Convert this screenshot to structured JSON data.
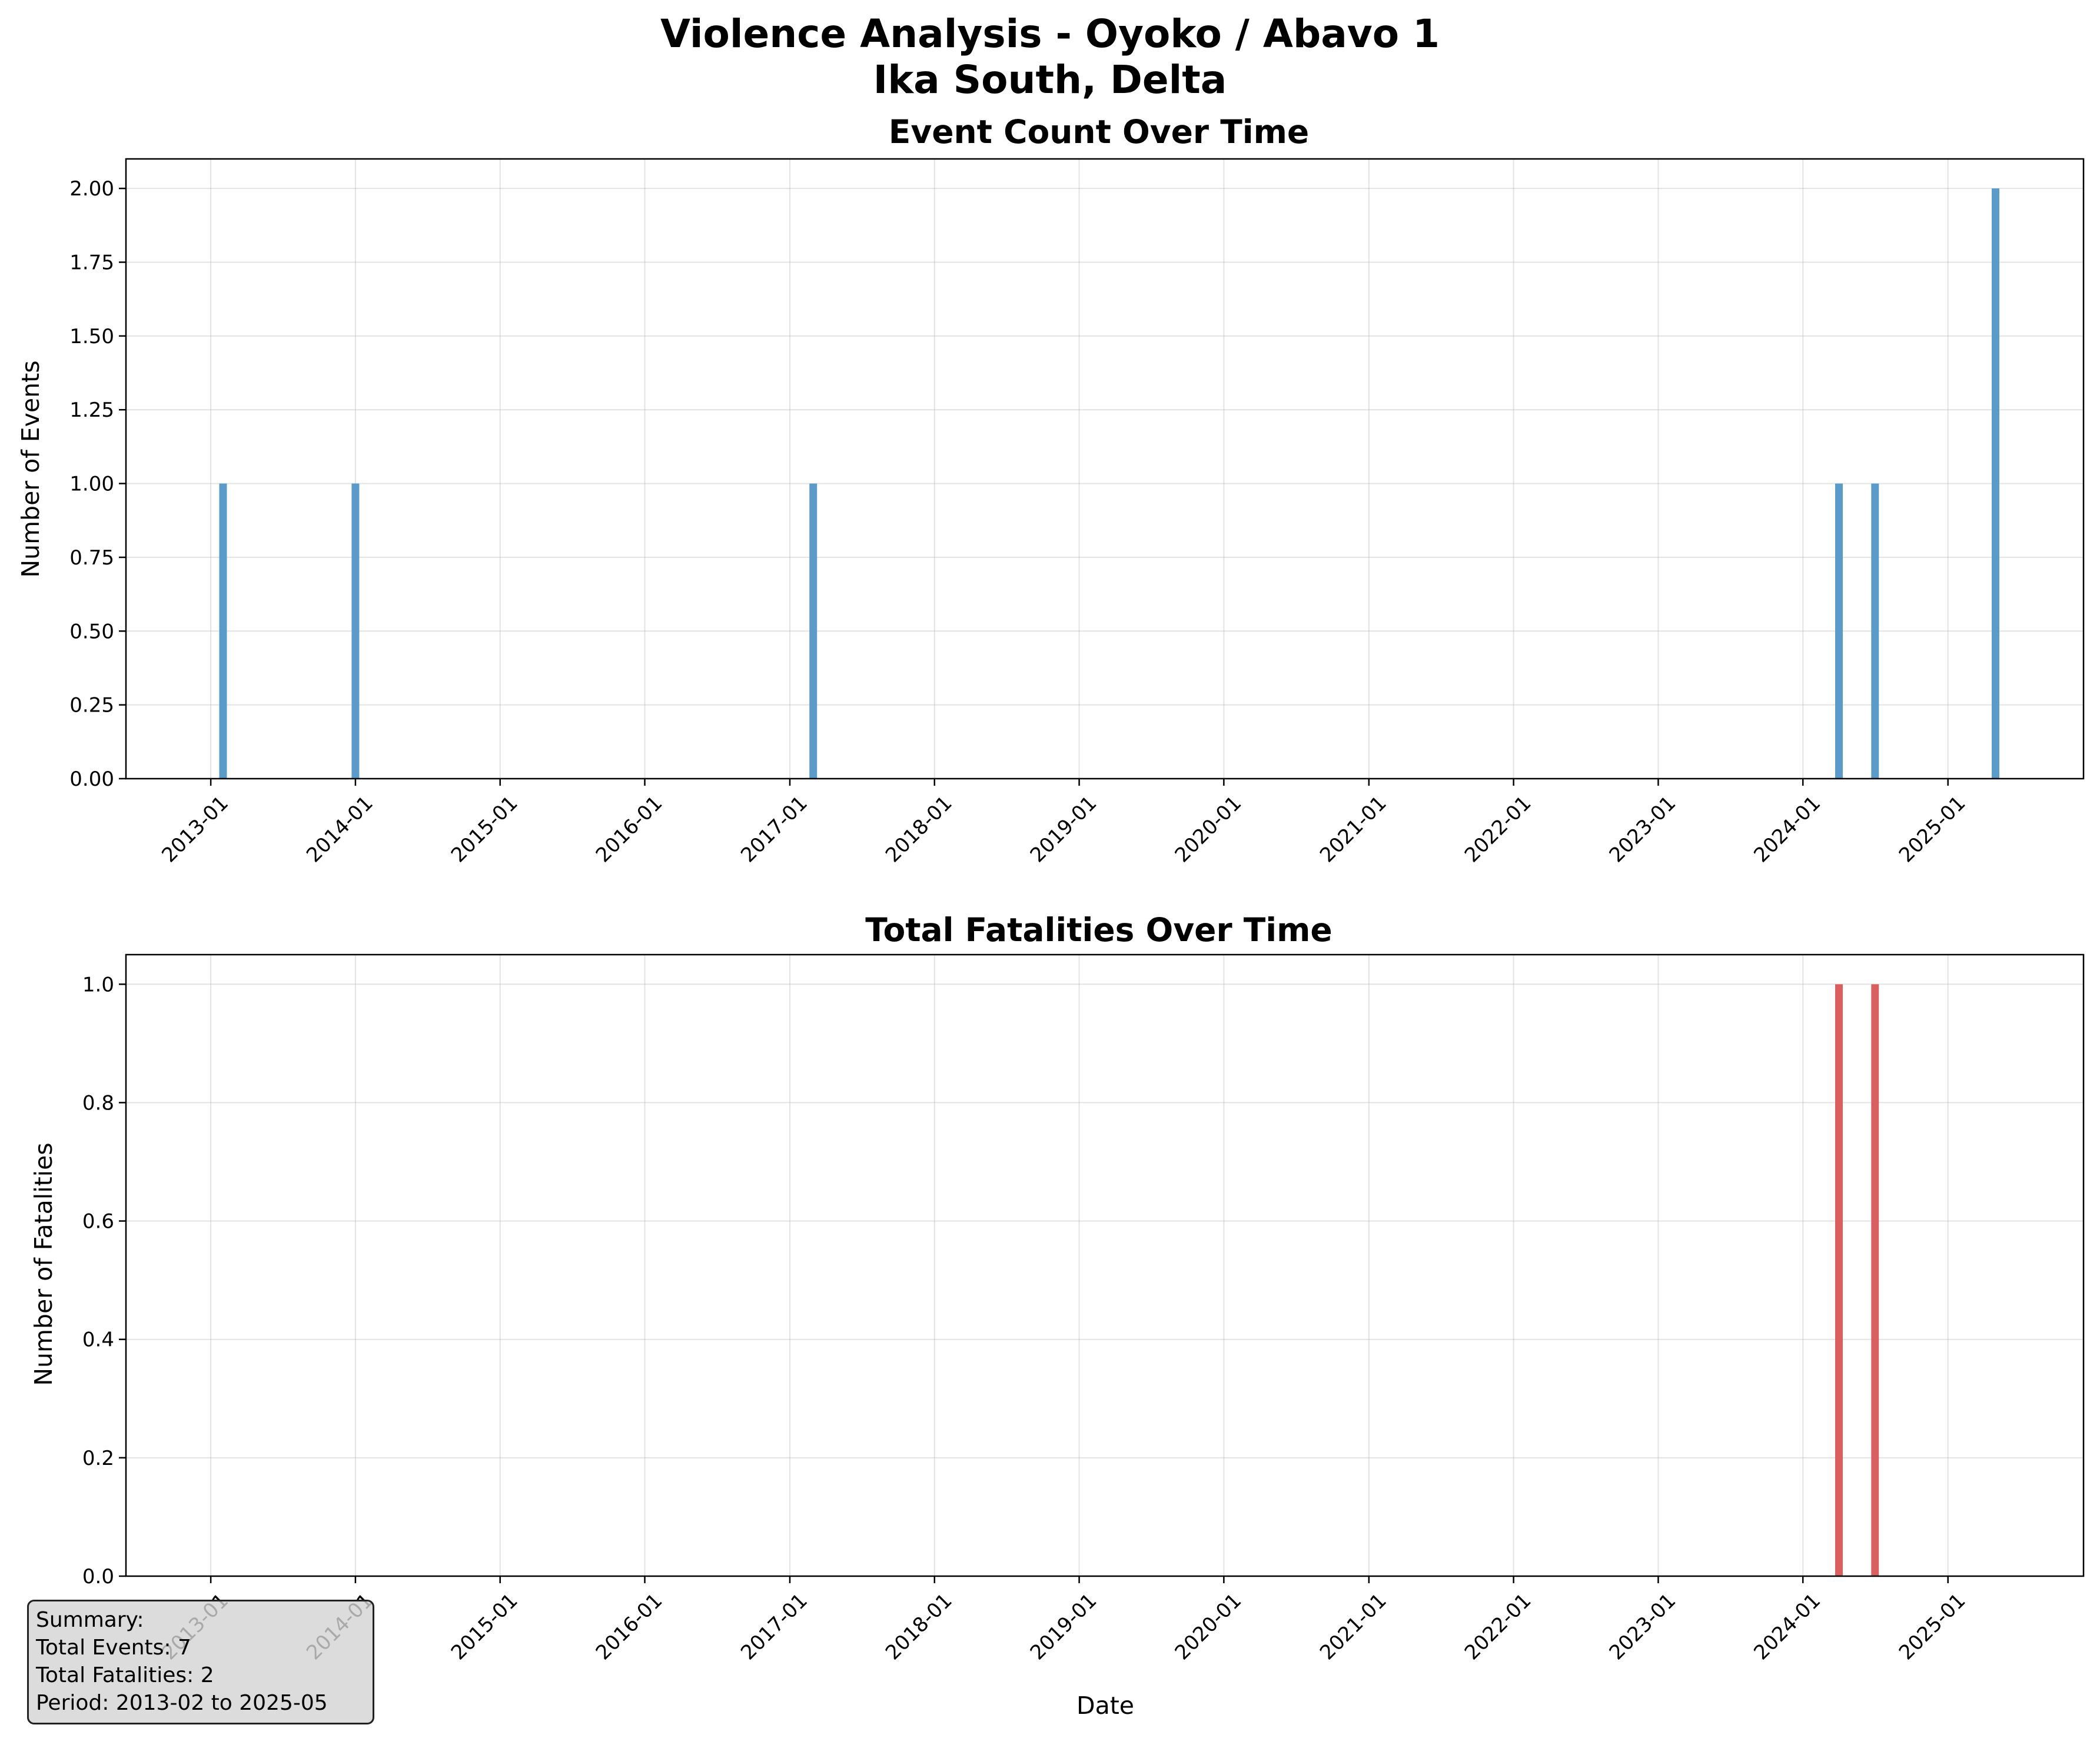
{
  "figure": {
    "title_line1": "Violence Analysis - Oyoko / Abavo 1",
    "title_line2": "Ika South, Delta"
  },
  "chart_data": [
    {
      "type": "bar",
      "title": "Event Count Over Time",
      "xlabel": "",
      "ylabel": "Number of Events",
      "color": "#5b9bc9",
      "xlim": [
        "2012-06-01",
        "2025-12-09"
      ],
      "ylim": [
        0,
        2.1
      ],
      "yticks": [
        0,
        0.25,
        0.5,
        0.75,
        1.0,
        1.25,
        1.5,
        1.75,
        2.0
      ],
      "ytick_labels": [
        "0.00",
        "0.25",
        "0.50",
        "0.75",
        "1.00",
        "1.25",
        "1.50",
        "1.75",
        "2.00"
      ],
      "xticks": [
        "2013-01-01",
        "2014-01-01",
        "2015-01-01",
        "2016-01-01",
        "2017-01-01",
        "2018-01-01",
        "2019-01-01",
        "2020-01-01",
        "2021-01-01",
        "2022-01-01",
        "2023-01-01",
        "2024-01-01",
        "2025-01-01"
      ],
      "xtick_labels": [
        "2013-01",
        "2014-01",
        "2015-01",
        "2016-01",
        "2017-01",
        "2018-01",
        "2019-01",
        "2020-01",
        "2021-01",
        "2022-01",
        "2023-01",
        "2024-01",
        "2025-01"
      ],
      "grid": true,
      "dates": [
        "2013-02",
        "2014-01",
        "2017-03",
        "2024-04",
        "2024-07",
        "2025-05"
      ],
      "values": [
        1,
        1,
        1,
        1,
        1,
        2
      ]
    },
    {
      "type": "bar",
      "title": "Total Fatalities Over Time",
      "xlabel": "Date",
      "ylabel": "Number of Fatalities",
      "color": "#d9605e",
      "xlim": [
        "2012-06-01",
        "2025-12-09"
      ],
      "ylim": [
        0,
        1.05
      ],
      "yticks": [
        0,
        0.2,
        0.4,
        0.6,
        0.8,
        1.0
      ],
      "ytick_labels": [
        "0.0",
        "0.2",
        "0.4",
        "0.6",
        "0.8",
        "1.0"
      ],
      "xticks": [
        "2013-01-01",
        "2014-01-01",
        "2015-01-01",
        "2016-01-01",
        "2017-01-01",
        "2018-01-01",
        "2019-01-01",
        "2020-01-01",
        "2021-01-01",
        "2022-01-01",
        "2023-01-01",
        "2024-01-01",
        "2025-01-01"
      ],
      "xtick_labels": [
        "2013-01",
        "2014-01",
        "2015-01",
        "2016-01",
        "2017-01",
        "2018-01",
        "2019-01",
        "2020-01",
        "2021-01",
        "2022-01",
        "2023-01",
        "2024-01",
        "2025-01"
      ],
      "grid": true,
      "dates": [
        "2024-04",
        "2024-07"
      ],
      "values": [
        1,
        1
      ]
    }
  ],
  "summary": {
    "heading": "Summary:",
    "total_events": "Total Events: 7",
    "total_fatalities": "Total Fatalities: 2",
    "period": "Period: 2013-02 to 2025-05"
  }
}
